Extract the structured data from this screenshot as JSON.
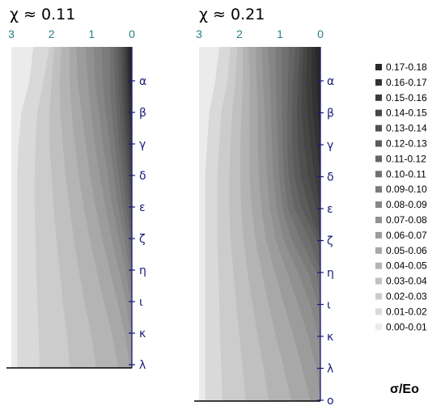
{
  "chart_data": [
    {
      "type": "heatmap",
      "title": "χ ≈ 0.11",
      "x_ticks": [
        "3",
        "2",
        "1",
        "0"
      ],
      "xlim": [
        3,
        0
      ],
      "y_ticks": [
        "α",
        "β",
        "γ",
        "δ",
        "ε",
        "ζ",
        "η",
        "ι",
        "κ",
        "λ"
      ],
      "levels": [
        {
          "y": "top",
          "x_extent": [
            2.45,
            2.05,
            1.93,
            1.75,
            1.55,
            1.38,
            1.15,
            0.95,
            0.75,
            0.55,
            0.45,
            0.35,
            0.28,
            0.22,
            0.16,
            0.12,
            0.08
          ]
        },
        {
          "y": "α",
          "x_extent": [
            2.55,
            2.2,
            2.0,
            1.8,
            1.55,
            1.35,
            1.1,
            0.92,
            0.72,
            0.55,
            0.42,
            0.33,
            0.26,
            0.2,
            0.14,
            0.1,
            0.06
          ]
        },
        {
          "y": "β",
          "x_extent": [
            2.75,
            2.35,
            2.05,
            1.78,
            1.5,
            1.25,
            1.02,
            0.82,
            0.65,
            0.5,
            0.38,
            0.3,
            0.22,
            0.16,
            0.1,
            0.06,
            0
          ]
        },
        {
          "y": "γ",
          "x_extent": [
            2.82,
            2.4,
            2.05,
            1.72,
            1.42,
            1.15,
            0.92,
            0.72,
            0.55,
            0.42,
            0.32,
            0.24,
            0.16,
            0.1,
            0.05,
            0,
            0
          ]
        },
        {
          "y": "δ",
          "x_extent": [
            2.85,
            2.42,
            2.0,
            1.65,
            1.32,
            1.04,
            0.8,
            0.6,
            0.45,
            0.33,
            0.23,
            0.15,
            0.08,
            0.03,
            0,
            0,
            0
          ]
        },
        {
          "y": "ε",
          "x_extent": [
            2.85,
            2.42,
            1.95,
            1.55,
            1.2,
            0.9,
            0.66,
            0.48,
            0.34,
            0.23,
            0.14,
            0.06,
            0.02,
            0,
            0,
            0,
            0
          ]
        },
        {
          "y": "ζ",
          "x_extent": [
            2.85,
            2.4,
            1.88,
            1.45,
            1.05,
            0.74,
            0.5,
            0.32,
            0.19,
            0.1,
            0.03,
            0,
            0,
            0,
            0,
            0,
            0
          ]
        },
        {
          "y": "η",
          "x_extent": [
            2.85,
            2.38,
            1.8,
            1.32,
            0.88,
            0.55,
            0.32,
            0.16,
            0.06,
            0,
            0,
            0,
            0,
            0,
            0,
            0,
            0
          ]
        },
        {
          "y": "ι",
          "x_extent": [
            2.85,
            2.35,
            1.72,
            1.18,
            0.7,
            0.36,
            0.14,
            0.03,
            0,
            0,
            0,
            0,
            0,
            0,
            0,
            0,
            0
          ]
        },
        {
          "y": "κ",
          "x_extent": [
            2.85,
            2.32,
            1.62,
            1.02,
            0.5,
            0.18,
            0.03,
            0,
            0,
            0,
            0,
            0,
            0,
            0,
            0,
            0,
            0
          ]
        },
        {
          "y": "λ",
          "x_extent": [
            2.85,
            2.3,
            1.55,
            0.9,
            0.35,
            0.05,
            0,
            0,
            0,
            0,
            0,
            0,
            0,
            0,
            0,
            0,
            0
          ]
        }
      ]
    },
    {
      "type": "heatmap",
      "title": "χ ≈ 0.21",
      "x_ticks": [
        "3",
        "2",
        "1",
        "0"
      ],
      "xlim": [
        3,
        0
      ],
      "y_ticks": [
        "α",
        "β",
        "γ",
        "δ",
        "ε",
        "ζ",
        "η",
        "ι",
        "κ",
        "λ",
        "ο"
      ],
      "levels": [
        {
          "y": "top",
          "x_extent": [
            2.5,
            2.22,
            2.05,
            1.92,
            1.78,
            1.6,
            1.45,
            1.3,
            1.12,
            0.95,
            0.78,
            0.62,
            0.5,
            0.42,
            0.32,
            0.22,
            0.12
          ]
        },
        {
          "y": "α",
          "x_extent": [
            2.6,
            2.3,
            2.1,
            1.92,
            1.75,
            1.58,
            1.42,
            1.25,
            1.1,
            0.95,
            0.8,
            0.68,
            0.56,
            0.46,
            0.35,
            0.22,
            0.1
          ]
        },
        {
          "y": "β",
          "x_extent": [
            2.75,
            2.45,
            2.18,
            1.95,
            1.75,
            1.55,
            1.38,
            1.22,
            1.08,
            0.95,
            0.82,
            0.7,
            0.58,
            0.46,
            0.32,
            0.18,
            0.05
          ]
        },
        {
          "y": "γ",
          "x_extent": [
            2.8,
            2.5,
            2.22,
            1.98,
            1.75,
            1.55,
            1.36,
            1.2,
            1.06,
            0.94,
            0.82,
            0.7,
            0.56,
            0.4,
            0.25,
            0.1,
            0
          ]
        },
        {
          "y": "δ",
          "x_extent": [
            2.85,
            2.55,
            2.25,
            1.98,
            1.75,
            1.52,
            1.32,
            1.16,
            1.02,
            0.9,
            0.78,
            0.64,
            0.48,
            0.3,
            0.14,
            0,
            0
          ]
        },
        {
          "y": "ε",
          "x_extent": [
            2.85,
            2.55,
            2.25,
            1.96,
            1.7,
            1.46,
            1.25,
            1.08,
            0.94,
            0.8,
            0.64,
            0.46,
            0.28,
            0.1,
            0,
            0,
            0
          ]
        },
        {
          "y": "ζ",
          "x_extent": [
            2.85,
            2.55,
            2.22,
            1.9,
            1.6,
            1.34,
            1.1,
            0.9,
            0.7,
            0.48,
            0.26,
            0.08,
            0,
            0,
            0,
            0,
            0
          ]
        },
        {
          "y": "η",
          "x_extent": [
            2.85,
            2.52,
            2.15,
            1.8,
            1.45,
            1.12,
            0.82,
            0.55,
            0.3,
            0.1,
            0,
            0,
            0,
            0,
            0,
            0,
            0
          ]
        },
        {
          "y": "ι",
          "x_extent": [
            2.85,
            2.5,
            2.08,
            1.68,
            1.28,
            0.9,
            0.55,
            0.25,
            0.06,
            0,
            0,
            0,
            0,
            0,
            0,
            0,
            0
          ]
        },
        {
          "y": "κ",
          "x_extent": [
            2.85,
            2.48,
            2.0,
            1.55,
            1.1,
            0.66,
            0.3,
            0.05,
            0,
            0,
            0,
            0,
            0,
            0,
            0,
            0,
            0
          ]
        },
        {
          "y": "λ",
          "x_extent": [
            2.85,
            2.45,
            1.92,
            1.4,
            0.9,
            0.45,
            0.1,
            0,
            0,
            0,
            0,
            0,
            0,
            0,
            0,
            0,
            0
          ]
        },
        {
          "y": "ο",
          "x_extent": [
            2.85,
            2.42,
            1.85,
            1.28,
            0.72,
            0.25,
            0,
            0,
            0,
            0,
            0,
            0,
            0,
            0,
            0,
            0,
            0
          ]
        }
      ]
    }
  ],
  "legend": {
    "title": "σ/Eo",
    "placement": "right",
    "entries": [
      {
        "label": "0.17-0.18",
        "color": "#282828"
      },
      {
        "label": "0.16-0.17",
        "color": "#323232"
      },
      {
        "label": "0.15-0.16",
        "color": "#3c3c3c"
      },
      {
        "label": "0.14-0.15",
        "color": "#464646"
      },
      {
        "label": "0.13-0.14",
        "color": "#505050"
      },
      {
        "label": "0.12-0.13",
        "color": "#5b5b5b"
      },
      {
        "label": "0.11-0.12",
        "color": "#656565"
      },
      {
        "label": "0.10-0.11",
        "color": "#707070"
      },
      {
        "label": "0.09-0.10",
        "color": "#7b7b7b"
      },
      {
        "label": "0.08-0.09",
        "color": "#868686"
      },
      {
        "label": "0.07-0.08",
        "color": "#919191"
      },
      {
        "label": "0.06-0.07",
        "color": "#9c9c9c"
      },
      {
        "label": "0.05-0.06",
        "color": "#a8a8a8"
      },
      {
        "label": "0.04-0.05",
        "color": "#b4b4b4"
      },
      {
        "label": "0.03-0.04",
        "color": "#c0c0c0"
      },
      {
        "label": "0.02-0.03",
        "color": "#cccccc"
      },
      {
        "label": "0.01-0.02",
        "color": "#d9d9d9"
      },
      {
        "label": "0.00-0.01",
        "color": "#ebebeb"
      }
    ]
  },
  "colors": {
    "xtick": "#2a7f86",
    "ytick": "#1a1a7a"
  }
}
